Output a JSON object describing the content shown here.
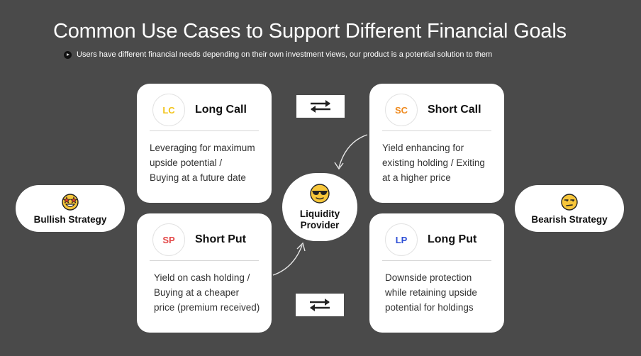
{
  "header": {
    "title": "Common Use Cases to Support Different Financial Goals",
    "subtitle": "Users have different financial needs depending on their own investment views, our product is a potential solution to them"
  },
  "cards": [
    {
      "badge": "LC",
      "badge_color": "#f2c318",
      "title": "Long Call",
      "lines": [
        "Leveraging for maximum",
        "upside potential /",
        "Buying at a future date"
      ]
    },
    {
      "badge": "SC",
      "badge_color": "#ef8a1e",
      "title": "Short Call",
      "lines": [
        "Yield enhancing for",
        "existing holding / Exiting",
        "at a higher price"
      ]
    },
    {
      "badge": "SP",
      "badge_color": "#e34848",
      "title": "Short Put",
      "lines": [
        "Yield on cash holding /",
        "Buying at a cheaper",
        "price (premium received)"
      ]
    },
    {
      "badge": "LP",
      "badge_color": "#2e4fd6",
      "title": "Long Put",
      "lines": [
        "Downside protection",
        "while retaining upside",
        "potential for holdings"
      ]
    }
  ],
  "bullish": {
    "label": "Bullish Strategy",
    "icon": "star-struck-emoji-icon"
  },
  "bearish": {
    "label": "Bearish Strategy",
    "icon": "unamused-emoji-icon"
  },
  "center": {
    "line1": "Liquidity",
    "line2": "Provider",
    "icon": "sunglasses-emoji-icon"
  },
  "swap_icon": "swap-arrows-icon"
}
